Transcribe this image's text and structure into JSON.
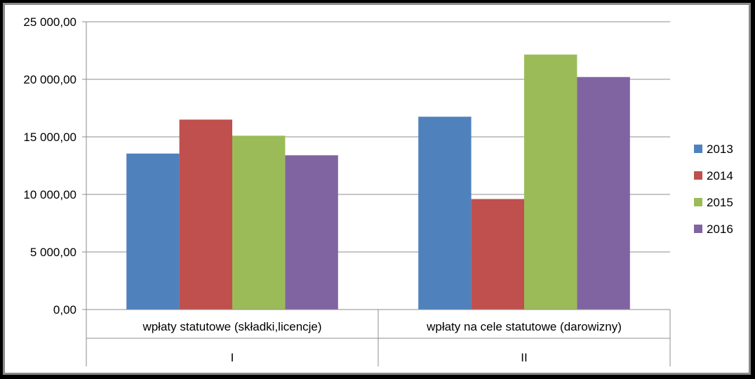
{
  "chart_data": {
    "type": "bar",
    "categories": [
      {
        "label": "wpłaty statutowe (składki,licencje)",
        "group": "I"
      },
      {
        "label": "wpłaty na cele statutowe (darowizny)",
        "group": "II"
      }
    ],
    "series": [
      {
        "name": "2013",
        "color": "#4F81BD",
        "values": [
          13550,
          16750
        ]
      },
      {
        "name": "2014",
        "color": "#C0504D",
        "values": [
          16500,
          9600
        ]
      },
      {
        "name": "2015",
        "color": "#9BBB59",
        "values": [
          15100,
          22150
        ]
      },
      {
        "name": "2016",
        "color": "#8064A2",
        "values": [
          13400,
          20200
        ]
      }
    ],
    "ylim": [
      0,
      25000
    ],
    "yticks": [
      "0,00",
      "5 000,00",
      "10 000,00",
      "15 000,00",
      "20 000,00",
      "25 000,00"
    ],
    "grid": true,
    "legend": "right"
  }
}
